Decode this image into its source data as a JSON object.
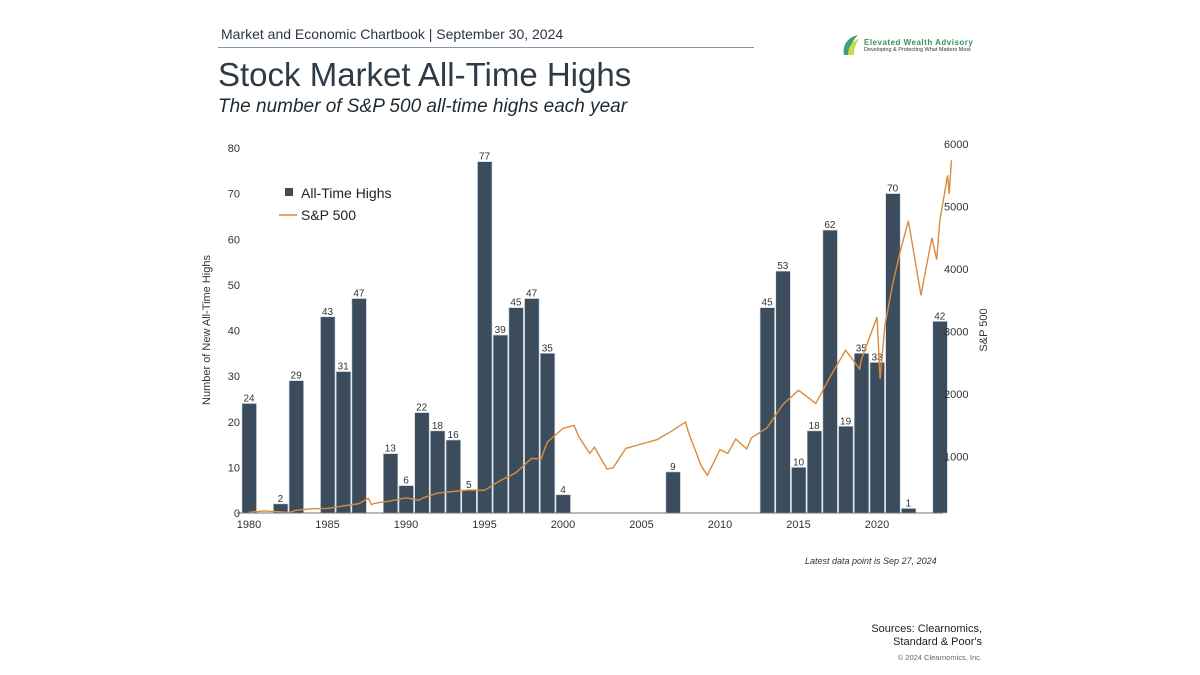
{
  "header": {
    "chartbook": "Market and Economic Chartbook | September 30, 2024",
    "title": "Stock Market All-Time Highs",
    "subtitle": "The number of S&P 500 all-time highs each year"
  },
  "logo": {
    "name": "Elevated Wealth Advisory",
    "tagline": "Developing & Protecting What Matters Most"
  },
  "footer": {
    "note": "Latest data point is Sep 27, 2024",
    "sources_line1": "Sources: Clearnomics,",
    "sources_line2": "Standard & Poor's",
    "copyright": "© 2024 Clearnomics, Inc."
  },
  "chart_data": {
    "type": "bar+line",
    "ylabel": "Number of New All-Time Highs",
    "ylabel_right": "S&P 500",
    "ylim": [
      0,
      80
    ],
    "ylim_right": [
      -90,
      6000
    ],
    "xlim": [
      1980,
      2024.75
    ],
    "xticks": [
      "1980",
      "1985",
      "1990",
      "1995",
      "2000",
      "2005",
      "2010",
      "2015",
      "2020"
    ],
    "yticks": [
      "0",
      "10",
      "20",
      "30",
      "40",
      "50",
      "60",
      "70",
      "80"
    ],
    "yticks_right": [
      "1000",
      "2000",
      "3000",
      "4000",
      "5000",
      "6000"
    ],
    "legend": {
      "placement": "top-left",
      "bars": "All-Time Highs",
      "line": "S&P 500"
    },
    "colors": {
      "bars": "#3b4d5c",
      "line": "#d98c3f"
    },
    "bars": {
      "name": "All-Time Highs",
      "years": [
        1980,
        1981,
        1982,
        1983,
        1984,
        1985,
        1986,
        1987,
        1988,
        1989,
        1990,
        1991,
        1992,
        1993,
        1994,
        1995,
        1996,
        1997,
        1998,
        1999,
        2000,
        2001,
        2002,
        2003,
        2004,
        2005,
        2006,
        2007,
        2008,
        2009,
        2010,
        2011,
        2012,
        2013,
        2014,
        2015,
        2016,
        2017,
        2018,
        2019,
        2020,
        2021,
        2022,
        2023,
        2024
      ],
      "values": [
        24,
        0,
        2,
        29,
        0,
        43,
        31,
        47,
        0,
        13,
        6,
        22,
        18,
        16,
        5,
        77,
        39,
        45,
        47,
        35,
        4,
        0,
        0,
        0,
        0,
        0,
        0,
        9,
        0,
        0,
        0,
        0,
        0,
        45,
        53,
        10,
        18,
        62,
        19,
        35,
        33,
        70,
        1,
        0,
        42
      ]
    },
    "line": {
      "name": "S&P 500",
      "points": [
        [
          1980,
          108
        ],
        [
          1981,
          130
        ],
        [
          1982,
          115
        ],
        [
          1982.6,
          105
        ],
        [
          1983,
          140
        ],
        [
          1984,
          165
        ],
        [
          1985,
          170
        ],
        [
          1986,
          210
        ],
        [
          1987,
          245
        ],
        [
          1987.6,
          330
        ],
        [
          1987.8,
          230
        ],
        [
          1988,
          250
        ],
        [
          1989,
          290
        ],
        [
          1990,
          340
        ],
        [
          1990.8,
          300
        ],
        [
          1991,
          330
        ],
        [
          1992,
          415
        ],
        [
          1993,
          440
        ],
        [
          1994,
          465
        ],
        [
          1995,
          460
        ],
        [
          1996,
          615
        ],
        [
          1997,
          740
        ],
        [
          1998,
          970
        ],
        [
          1998.6,
          960
        ],
        [
          1999,
          1230
        ],
        [
          2000,
          1450
        ],
        [
          2000.7,
          1500
        ],
        [
          2001,
          1320
        ],
        [
          2001.7,
          1050
        ],
        [
          2002,
          1150
        ],
        [
          2002.8,
          800
        ],
        [
          2003.2,
          820
        ],
        [
          2004,
          1130
        ],
        [
          2005,
          1200
        ],
        [
          2006,
          1270
        ],
        [
          2007,
          1420
        ],
        [
          2007.8,
          1550
        ],
        [
          2008,
          1380
        ],
        [
          2008.8,
          850
        ],
        [
          2009.2,
          700
        ],
        [
          2010,
          1110
        ],
        [
          2010.5,
          1050
        ],
        [
          2011,
          1280
        ],
        [
          2011.7,
          1120
        ],
        [
          2012,
          1300
        ],
        [
          2013,
          1460
        ],
        [
          2014,
          1830
        ],
        [
          2015,
          2060
        ],
        [
          2016.1,
          1850
        ],
        [
          2017,
          2270
        ],
        [
          2018,
          2700
        ],
        [
          2018.9,
          2400
        ],
        [
          2019,
          2550
        ],
        [
          2020,
          3230
        ],
        [
          2020.2,
          2240
        ],
        [
          2020.5,
          3100
        ],
        [
          2021,
          3760
        ],
        [
          2021.5,
          4300
        ],
        [
          2022,
          4770
        ],
        [
          2022.8,
          3580
        ],
        [
          2023,
          3850
        ],
        [
          2023.5,
          4500
        ],
        [
          2023.8,
          4150
        ],
        [
          2024,
          4770
        ],
        [
          2024.5,
          5500
        ],
        [
          2024.6,
          5200
        ],
        [
          2024.74,
          5740
        ]
      ]
    }
  }
}
